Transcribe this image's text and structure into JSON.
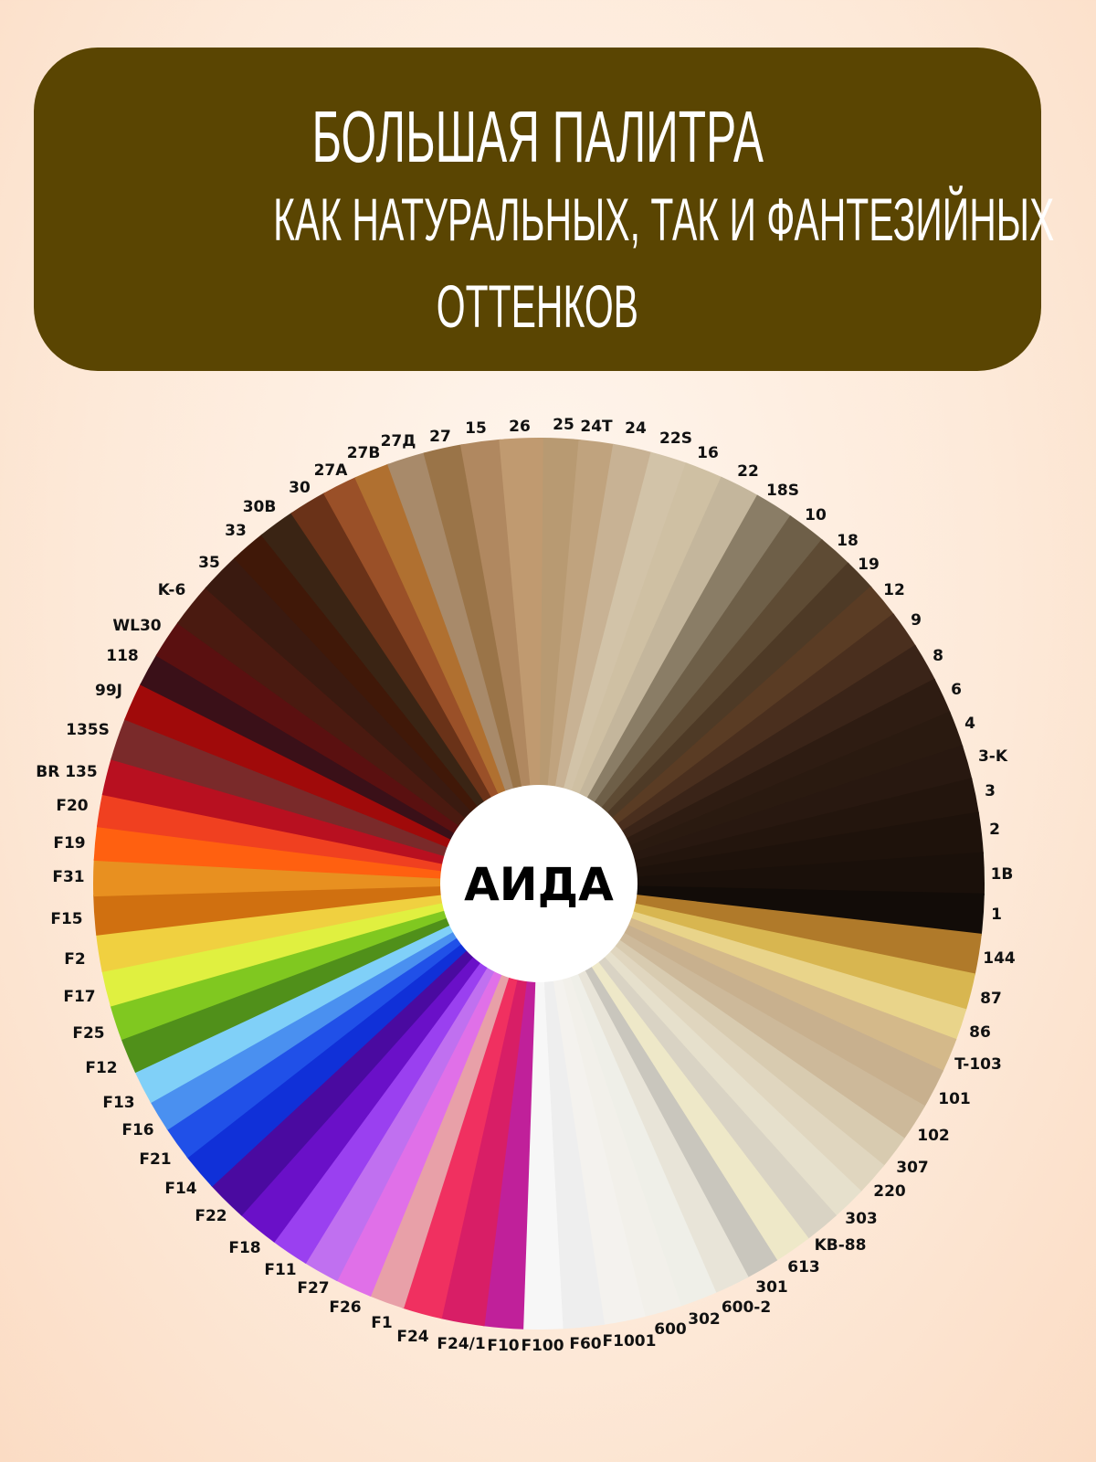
{
  "header": {
    "title": "БОЛЬШАЯ ПАЛИТРА",
    "subtitle_line1": "КАК НАТУРАЛЬНЫХ, ТАК И ФАНТЕЗИЙНЫХ",
    "subtitle_line2": "ОТТЕНКОВ",
    "background_color": "#5a4502"
  },
  "wheel": {
    "center_label": "АИДА",
    "shades": [
      {
        "label": "25",
        "color": "#b89a72"
      },
      {
        "label": "24T",
        "color": "#c0a37e"
      },
      {
        "label": "24",
        "color": "#c8b294"
      },
      {
        "label": "22S",
        "color": "#d2c3a8"
      },
      {
        "label": "16",
        "color": "#cfc0a3"
      },
      {
        "label": "22",
        "color": "#c4b69c"
      },
      {
        "label": "18S",
        "color": "#8a7d66"
      },
      {
        "label": "10",
        "color": "#6e5f48"
      },
      {
        "label": "18",
        "color": "#5e4b34"
      },
      {
        "label": "19",
        "color": "#4e3a26"
      },
      {
        "label": "12",
        "color": "#5a3c24"
      },
      {
        "label": "9",
        "color": "#4a2f1e"
      },
      {
        "label": "8",
        "color": "#3a2418"
      },
      {
        "label": "6",
        "color": "#2e1c12"
      },
      {
        "label": "4",
        "color": "#2a1a10"
      },
      {
        "label": "3-K",
        "color": "#281810"
      },
      {
        "label": "3",
        "color": "#23150d"
      },
      {
        "label": "2",
        "color": "#1e120b"
      },
      {
        "label": "1B",
        "color": "#1a100a"
      },
      {
        "label": "1",
        "color": "#120c08"
      },
      {
        "label": "144",
        "color": "#b07a2a"
      },
      {
        "label": "87",
        "color": "#d8b650"
      },
      {
        "label": "86",
        "color": "#e9d48a"
      },
      {
        "label": "T-103",
        "color": "#d4b98a"
      },
      {
        "label": "101",
        "color": "#c8b08e"
      },
      {
        "label": "102",
        "color": "#cdb99a"
      },
      {
        "label": "307",
        "color": "#d8cbb0"
      },
      {
        "label": "220",
        "color": "#e0d6bf"
      },
      {
        "label": "303",
        "color": "#e6e0cc"
      },
      {
        "label": "KB-88",
        "color": "#d9d3c4"
      },
      {
        "label": "613",
        "color": "#eee8c8"
      },
      {
        "label": "301",
        "color": "#c9c6bd"
      },
      {
        "label": "600-2",
        "color": "#e8e4d8"
      },
      {
        "label": "302",
        "color": "#efefe8"
      },
      {
        "label": "600",
        "color": "#f2f0ea"
      },
      {
        "label": "F1001",
        "color": "#f4f2ee"
      },
      {
        "label": "F60",
        "color": "#eeeeee"
      },
      {
        "label": "F100",
        "color": "#f7f7f7"
      },
      {
        "label": "F10",
        "color": "#c0209a"
      },
      {
        "label": "F24/1",
        "color": "#d81e66"
      },
      {
        "label": "F24",
        "color": "#f03060"
      },
      {
        "label": "F1",
        "color": "#e8a0a8"
      },
      {
        "label": "F26",
        "color": "#e070e8"
      },
      {
        "label": "F27",
        "color": "#c070f0"
      },
      {
        "label": "F11",
        "color": "#9a40f0"
      },
      {
        "label": "F18",
        "color": "#6a10c8"
      },
      {
        "label": "F22",
        "color": "#4a0aa0"
      },
      {
        "label": "F14",
        "color": "#1030d8"
      },
      {
        "label": "F21",
        "color": "#2050e8"
      },
      {
        "label": "F16",
        "color": "#4a90f0"
      },
      {
        "label": "F13",
        "color": "#80d0f8"
      },
      {
        "label": "F12",
        "color": "#50901a"
      },
      {
        "label": "F25",
        "color": "#80c820"
      },
      {
        "label": "F17",
        "color": "#e0f040"
      },
      {
        "label": "F2",
        "color": "#f0d040"
      },
      {
        "label": "F15",
        "color": "#d07010"
      },
      {
        "label": "F31",
        "color": "#e89020"
      },
      {
        "label": "F19",
        "color": "#ff6010"
      },
      {
        "label": "F20",
        "color": "#f04020"
      },
      {
        "label": "BR 135",
        "color": "#b81020"
      },
      {
        "label": "135S",
        "color": "#7a2a2a"
      },
      {
        "label": "99J",
        "color": "#a00a0a"
      },
      {
        "label": "118",
        "color": "#3a1018"
      },
      {
        "label": "WL30",
        "color": "#5a1010"
      },
      {
        "label": "K-6",
        "color": "#4a1a10"
      },
      {
        "label": "35",
        "color": "#3a1a10"
      },
      {
        "label": "33",
        "color": "#401808"
      },
      {
        "label": "30B",
        "color": "#3a2414"
      },
      {
        "label": "30",
        "color": "#6a3218"
      },
      {
        "label": "27A",
        "color": "#9a5028"
      },
      {
        "label": "27B",
        "color": "#b07030"
      },
      {
        "label": "27Д",
        "color": "#a88a6a"
      },
      {
        "label": "27",
        "color": "#9a7448"
      },
      {
        "label": "15",
        "color": "#b08860"
      },
      {
        "label": "26",
        "color": "#c09a70"
      }
    ]
  }
}
